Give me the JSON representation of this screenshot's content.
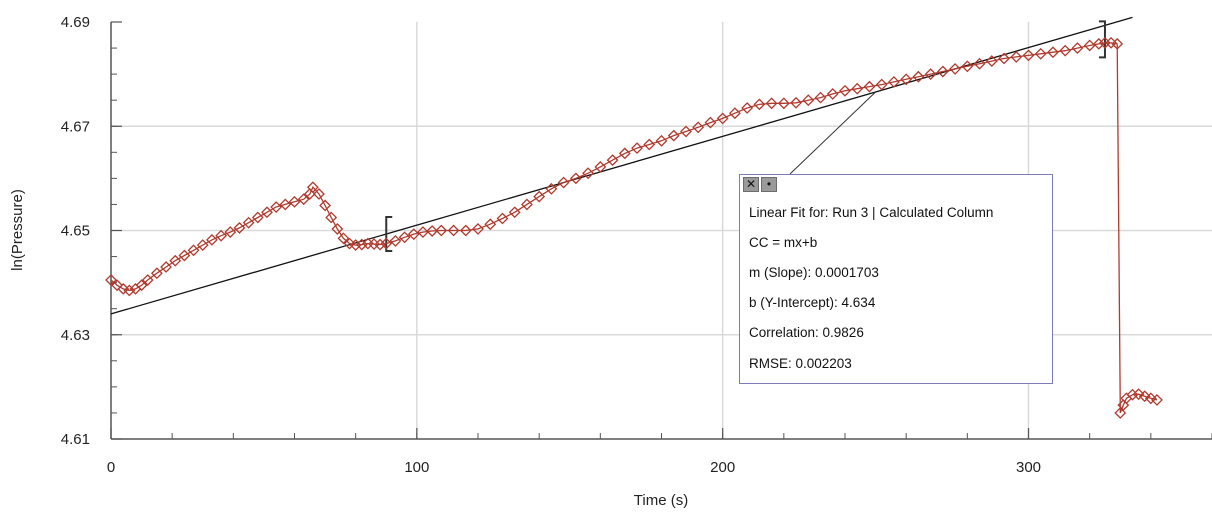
{
  "chart_data": {
    "type": "scatter",
    "xlabel": "Time (s)",
    "ylabel": "ln(Pressure)",
    "xlim": [
      0,
      360
    ],
    "ylim": [
      4.61,
      4.69
    ],
    "x_ticks": [
      0,
      100,
      200,
      300
    ],
    "x_tick_labels": [
      "0",
      "100",
      "200",
      "300"
    ],
    "y_ticks": [
      4.61,
      4.63,
      4.65,
      4.67,
      4.69
    ],
    "y_tick_labels": [
      "4.61",
      "4.63",
      "4.65",
      "4.67",
      "4.69"
    ],
    "grid": true,
    "series": [
      {
        "marker": "diamond",
        "color": "#b03a2e",
        "connected": true,
        "points": [
          [
            0,
            4.6405
          ],
          [
            2,
            4.6395
          ],
          [
            4,
            4.6388
          ],
          [
            6,
            4.6385
          ],
          [
            8,
            4.6388
          ],
          [
            10,
            4.6395
          ],
          [
            12,
            4.6405
          ],
          [
            15,
            4.6418
          ],
          [
            18,
            4.643
          ],
          [
            21,
            4.6442
          ],
          [
            24,
            4.6452
          ],
          [
            27,
            4.6462
          ],
          [
            30,
            4.6472
          ],
          [
            33,
            4.6482
          ],
          [
            36,
            4.649
          ],
          [
            39,
            4.6497
          ],
          [
            42,
            4.6505
          ],
          [
            45,
            4.6515
          ],
          [
            48,
            4.6525
          ],
          [
            51,
            4.6535
          ],
          [
            54,
            4.6545
          ],
          [
            57,
            4.655
          ],
          [
            60,
            4.6555
          ],
          [
            63,
            4.656
          ],
          [
            65,
            4.657
          ],
          [
            66,
            4.6583
          ],
          [
            68,
            4.657
          ],
          [
            70,
            4.6548
          ],
          [
            72,
            4.6525
          ],
          [
            74,
            4.6503
          ],
          [
            76,
            4.6485
          ],
          [
            78,
            4.6475
          ],
          [
            80,
            4.6472
          ],
          [
            82,
            4.6473
          ],
          [
            84,
            4.6475
          ],
          [
            86,
            4.6474
          ],
          [
            88,
            4.6473
          ],
          [
            90,
            4.6475
          ],
          [
            93,
            4.648
          ],
          [
            96,
            4.6487
          ],
          [
            99,
            4.6493
          ],
          [
            102,
            4.6497
          ],
          [
            105,
            4.6499
          ],
          [
            108,
            4.65
          ],
          [
            112,
            4.65
          ],
          [
            116,
            4.65
          ],
          [
            120,
            4.6503
          ],
          [
            124,
            4.6512
          ],
          [
            128,
            4.6523
          ],
          [
            132,
            4.6535
          ],
          [
            136,
            4.655
          ],
          [
            140,
            4.6565
          ],
          [
            144,
            4.658
          ],
          [
            148,
            4.6592
          ],
          [
            152,
            4.66
          ],
          [
            156,
            4.661
          ],
          [
            160,
            4.6622
          ],
          [
            164,
            4.6635
          ],
          [
            168,
            4.6648
          ],
          [
            172,
            4.6658
          ],
          [
            176,
            4.6665
          ],
          [
            180,
            4.6672
          ],
          [
            184,
            4.6682
          ],
          [
            188,
            4.669
          ],
          [
            192,
            4.6698
          ],
          [
            196,
            4.6707
          ],
          [
            200,
            4.6715
          ],
          [
            204,
            4.6725
          ],
          [
            208,
            4.6735
          ],
          [
            212,
            4.6742
          ],
          [
            216,
            4.6744
          ],
          [
            220,
            4.6744
          ],
          [
            224,
            4.6745
          ],
          [
            228,
            4.675
          ],
          [
            232,
            4.6755
          ],
          [
            236,
            4.6762
          ],
          [
            240,
            4.6768
          ],
          [
            244,
            4.6772
          ],
          [
            248,
            4.6776
          ],
          [
            252,
            4.678
          ],
          [
            256,
            4.6785
          ],
          [
            260,
            4.679
          ],
          [
            264,
            4.6795
          ],
          [
            268,
            4.68
          ],
          [
            272,
            4.6805
          ],
          [
            276,
            4.681
          ],
          [
            280,
            4.6815
          ],
          [
            284,
            4.682
          ],
          [
            288,
            4.6825
          ],
          [
            292,
            4.683
          ],
          [
            296,
            4.6833
          ],
          [
            300,
            4.6836
          ],
          [
            304,
            4.6839
          ],
          [
            308,
            4.6842
          ],
          [
            312,
            4.6845
          ],
          [
            316,
            4.685
          ],
          [
            320,
            4.6855
          ],
          [
            323,
            4.6858
          ],
          [
            325,
            4.686
          ],
          [
            327,
            4.686
          ],
          [
            329,
            4.6858
          ],
          [
            330,
            4.615
          ],
          [
            331,
            4.6165
          ],
          [
            332,
            4.6178
          ],
          [
            334,
            4.6185
          ],
          [
            336,
            4.6186
          ],
          [
            338,
            4.6182
          ],
          [
            340,
            4.6178
          ],
          [
            342,
            4.6175
          ]
        ]
      }
    ],
    "fit_line": {
      "slope": 0.0001703,
      "intercept": 4.634,
      "x_range": [
        0,
        334
      ]
    },
    "fit_selection": [
      90,
      325
    ],
    "fit_info": {
      "close_icon": "close-icon",
      "options_icon": "menu-icon",
      "lines": [
        "Linear Fit for: Run 3 | Calculated Column",
        "CC = mx+b",
        "m (Slope): 0.0001703",
        "b (Y-Intercept): 4.634",
        "Correlation: 0.9826",
        "RMSE: 0.002203"
      ]
    },
    "colors": {
      "data": "#b03a2e",
      "grid": "#d9d9d9",
      "axis": "#555555",
      "fit": "#111111",
      "box_border": "#7c7cb8"
    }
  }
}
